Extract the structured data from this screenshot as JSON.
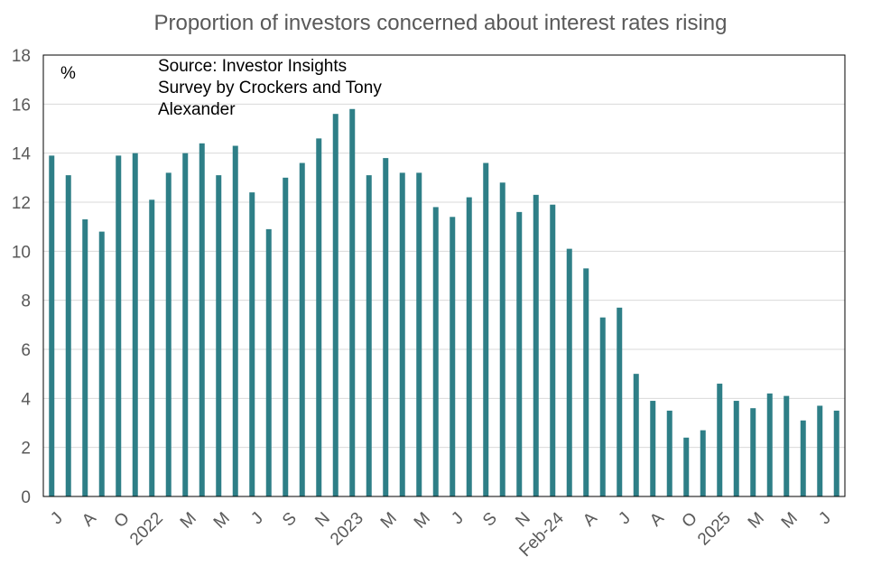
{
  "chart_data": {
    "type": "bar",
    "title": "Proportion of investors concerned about interest rates rising",
    "ylabel": "%",
    "ylim": [
      0,
      18
    ],
    "yticks": [
      0,
      2,
      4,
      6,
      8,
      10,
      12,
      14,
      16,
      18
    ],
    "grid": true,
    "legend": "none",
    "bar_color": "#2E7F87",
    "annotation": [
      "Source: Investor Insights",
      "Survey by Crockers and Tony",
      "Alexander"
    ],
    "xtick_labels": [
      {
        "index": 0,
        "label": "J"
      },
      {
        "index": 2,
        "label": "A"
      },
      {
        "index": 4,
        "label": "O"
      },
      {
        "index": 6,
        "label": "2022"
      },
      {
        "index": 8,
        "label": "M"
      },
      {
        "index": 10,
        "label": "M"
      },
      {
        "index": 12,
        "label": "J"
      },
      {
        "index": 14,
        "label": "S"
      },
      {
        "index": 16,
        "label": "N"
      },
      {
        "index": 18,
        "label": "2023"
      },
      {
        "index": 20,
        "label": "M"
      },
      {
        "index": 22,
        "label": "M"
      },
      {
        "index": 24,
        "label": "J"
      },
      {
        "index": 26,
        "label": "S"
      },
      {
        "index": 28,
        "label": "N"
      },
      {
        "index": 30,
        "label": "Feb-24"
      },
      {
        "index": 32,
        "label": "A"
      },
      {
        "index": 34,
        "label": "J"
      },
      {
        "index": 36,
        "label": "A"
      },
      {
        "index": 38,
        "label": "O"
      },
      {
        "index": 40,
        "label": "2025"
      },
      {
        "index": 42,
        "label": "M"
      },
      {
        "index": 44,
        "label": "M"
      },
      {
        "index": 46,
        "label": "J"
      }
    ],
    "values": [
      13.9,
      13.1,
      11.3,
      10.8,
      13.9,
      14.0,
      12.1,
      13.2,
      14.0,
      14.4,
      13.1,
      14.3,
      12.4,
      10.9,
      13.0,
      13.6,
      14.6,
      15.6,
      15.8,
      13.1,
      13.8,
      13.2,
      13.2,
      11.8,
      11.4,
      12.2,
      13.6,
      12.8,
      11.6,
      12.3,
      11.9,
      10.1,
      9.3,
      7.3,
      7.7,
      5.0,
      3.9,
      3.5,
      2.4,
      2.7,
      4.6,
      3.9,
      3.6,
      4.2,
      4.1,
      3.1,
      3.7,
      3.5
    ]
  }
}
